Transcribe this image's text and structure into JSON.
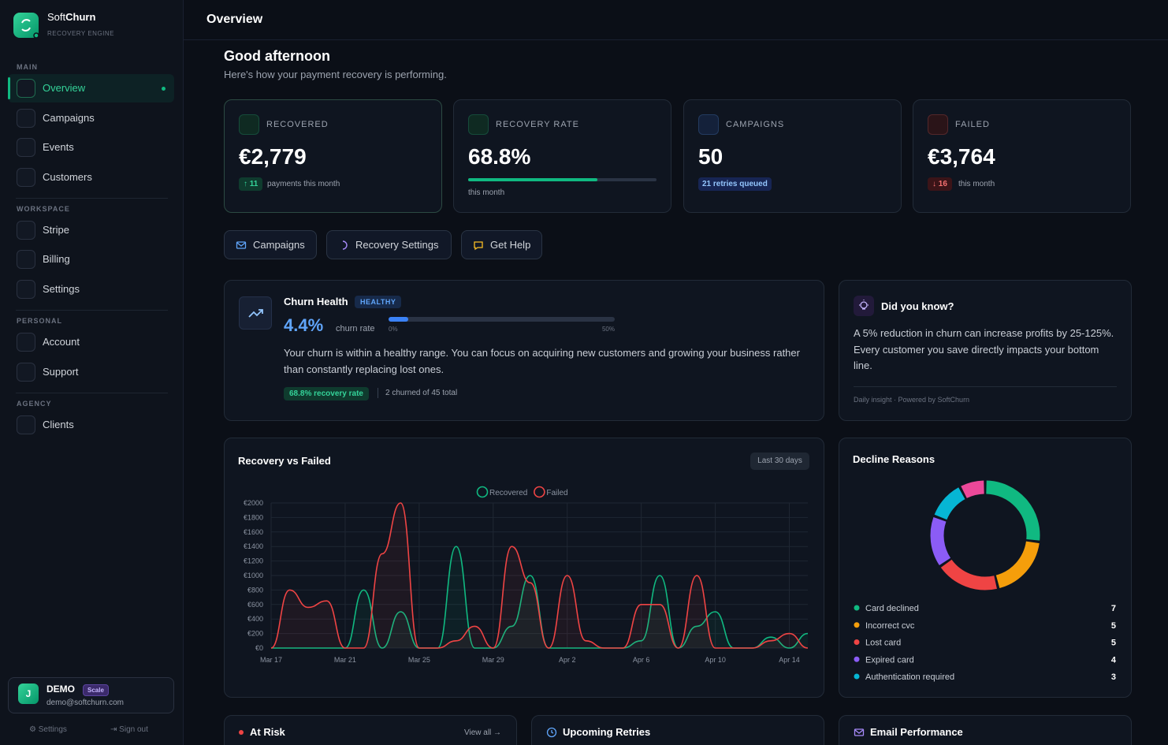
{
  "sidebar": {
    "brand": {
      "light": "Soft",
      "bold": "Churn"
    },
    "tagline": "RECOVERY ENGINE",
    "nav": [
      {
        "section": "MAIN",
        "items": [
          "Overview",
          "Campaigns",
          "Events",
          "Customers"
        ]
      },
      {
        "section": "WORKSPACE",
        "items": [
          "Stripe",
          "Billing",
          "Settings"
        ]
      },
      {
        "section": "PERSONAL",
        "items": [
          "Account",
          "Support"
        ]
      },
      {
        "section": "AGENCY",
        "items": [
          "Clients"
        ]
      }
    ],
    "user": {
      "initial": "J",
      "name": "DEMO",
      "plan": "Scale",
      "email": "demo@softchurn.com"
    },
    "footer": [
      "Settings",
      "Sign out"
    ]
  },
  "header": {
    "title": "Overview"
  },
  "greeting": {
    "title": "Good afternoon",
    "subtitle": "Here's how your payment recovery is performing."
  },
  "stats": [
    {
      "label": "RECOVERED",
      "value": "€2,779",
      "delta": 11,
      "trend": "up",
      "note": "payments this month"
    },
    {
      "label": "RECOVERY RATE",
      "value": "68.8%",
      "progress": 68.8,
      "progress_lim": [
        0,
        100
      ],
      "note": "this month"
    },
    {
      "label": "CAMPAIGNS",
      "value": 50,
      "badge": "21 retries queued"
    },
    {
      "label": "FAILED",
      "value": "€3,764",
      "delta": 16,
      "trend": "down",
      "note": "this month"
    }
  ],
  "actions": [
    "Campaigns",
    "Recovery Settings",
    "Get Help"
  ],
  "churn_health": {
    "title": "Churn Health",
    "status": "HEALTHY",
    "value": 4.4,
    "value_label": "4.4%",
    "caption": "churn rate",
    "scale": [
      {
        "value": 0,
        "label": "0%"
      },
      {
        "value": 50,
        "label": "50%"
      }
    ],
    "text": "Your churn is within a healthy range. You can focus on acquiring new customers and growing your business rather than constantly replacing lost ones.",
    "recovery_badge": "68.8% recovery rate",
    "summary": "2 churned of 45 total"
  },
  "insight": {
    "title": "Did you know?",
    "text": "A 5% reduction in churn can increase profits by 25-125%. Every customer you save directly impacts your bottom line.",
    "footer": "Daily insight · Powered by SoftChurn"
  },
  "chart_data": [
    {
      "type": "line",
      "title": "Recovery vs Failed",
      "range_label": "Last 30 days",
      "categories": [
        "Mar 17",
        null,
        null,
        null,
        "Mar 21",
        null,
        null,
        null,
        "Mar 25",
        null,
        null,
        null,
        "Mar 29",
        null,
        null,
        null,
        "Apr 2",
        null,
        null,
        null,
        "Apr 6",
        null,
        null,
        null,
        "Apr 10",
        null,
        null,
        null,
        "Apr 14",
        null
      ],
      "series": [
        {
          "name": "Recovered",
          "color": "#10b981",
          "values": [
            0,
            0,
            0,
            0,
            0,
            800,
            0,
            500,
            0,
            0,
            1400,
            0,
            0,
            300,
            1000,
            0,
            0,
            0,
            0,
            0,
            100,
            1000,
            0,
            300,
            500,
            0,
            0,
            150,
            0,
            200
          ]
        },
        {
          "name": "Failed",
          "color": "#ef4444",
          "values": [
            0,
            800,
            560,
            650,
            0,
            0,
            1300,
            2000,
            0,
            0,
            100,
            300,
            0,
            1400,
            900,
            0,
            1000,
            100,
            0,
            0,
            600,
            600,
            0,
            1000,
            0,
            0,
            0,
            100,
            200,
            0
          ]
        }
      ],
      "ylim": [
        0,
        2000
      ],
      "yticks": [
        {
          "value": 0,
          "label": "€0"
        },
        {
          "value": 200,
          "label": "€200"
        },
        {
          "value": 400,
          "label": "€400"
        },
        {
          "value": 600,
          "label": "€600"
        },
        {
          "value": 800,
          "label": "€800"
        },
        {
          "value": 1000,
          "label": "€1000"
        },
        {
          "value": 1200,
          "label": "€1200"
        },
        {
          "value": 1400,
          "label": "€1400"
        },
        {
          "value": 1600,
          "label": "€1600"
        },
        {
          "value": 1800,
          "label": "€1800"
        },
        {
          "value": 2000,
          "label": "€2000"
        }
      ],
      "grid": true,
      "legend": "top"
    },
    {
      "type": "donut",
      "title": "Decline Reasons",
      "categories": [
        "Card declined",
        "Incorrect cvc",
        "Lost card",
        "Expired card",
        "Authentication required",
        null
      ],
      "values": [
        7,
        5,
        5,
        4,
        3,
        2
      ],
      "colors": [
        "#10b981",
        "#f59e0b",
        "#ef4444",
        "#8b5cf6",
        "#06b6d4",
        "#ec4899"
      ]
    }
  ],
  "panels": [
    {
      "title": "At Risk",
      "link": "View all →"
    },
    {
      "title": "Upcoming Retries"
    },
    {
      "title": "Email Performance"
    }
  ]
}
